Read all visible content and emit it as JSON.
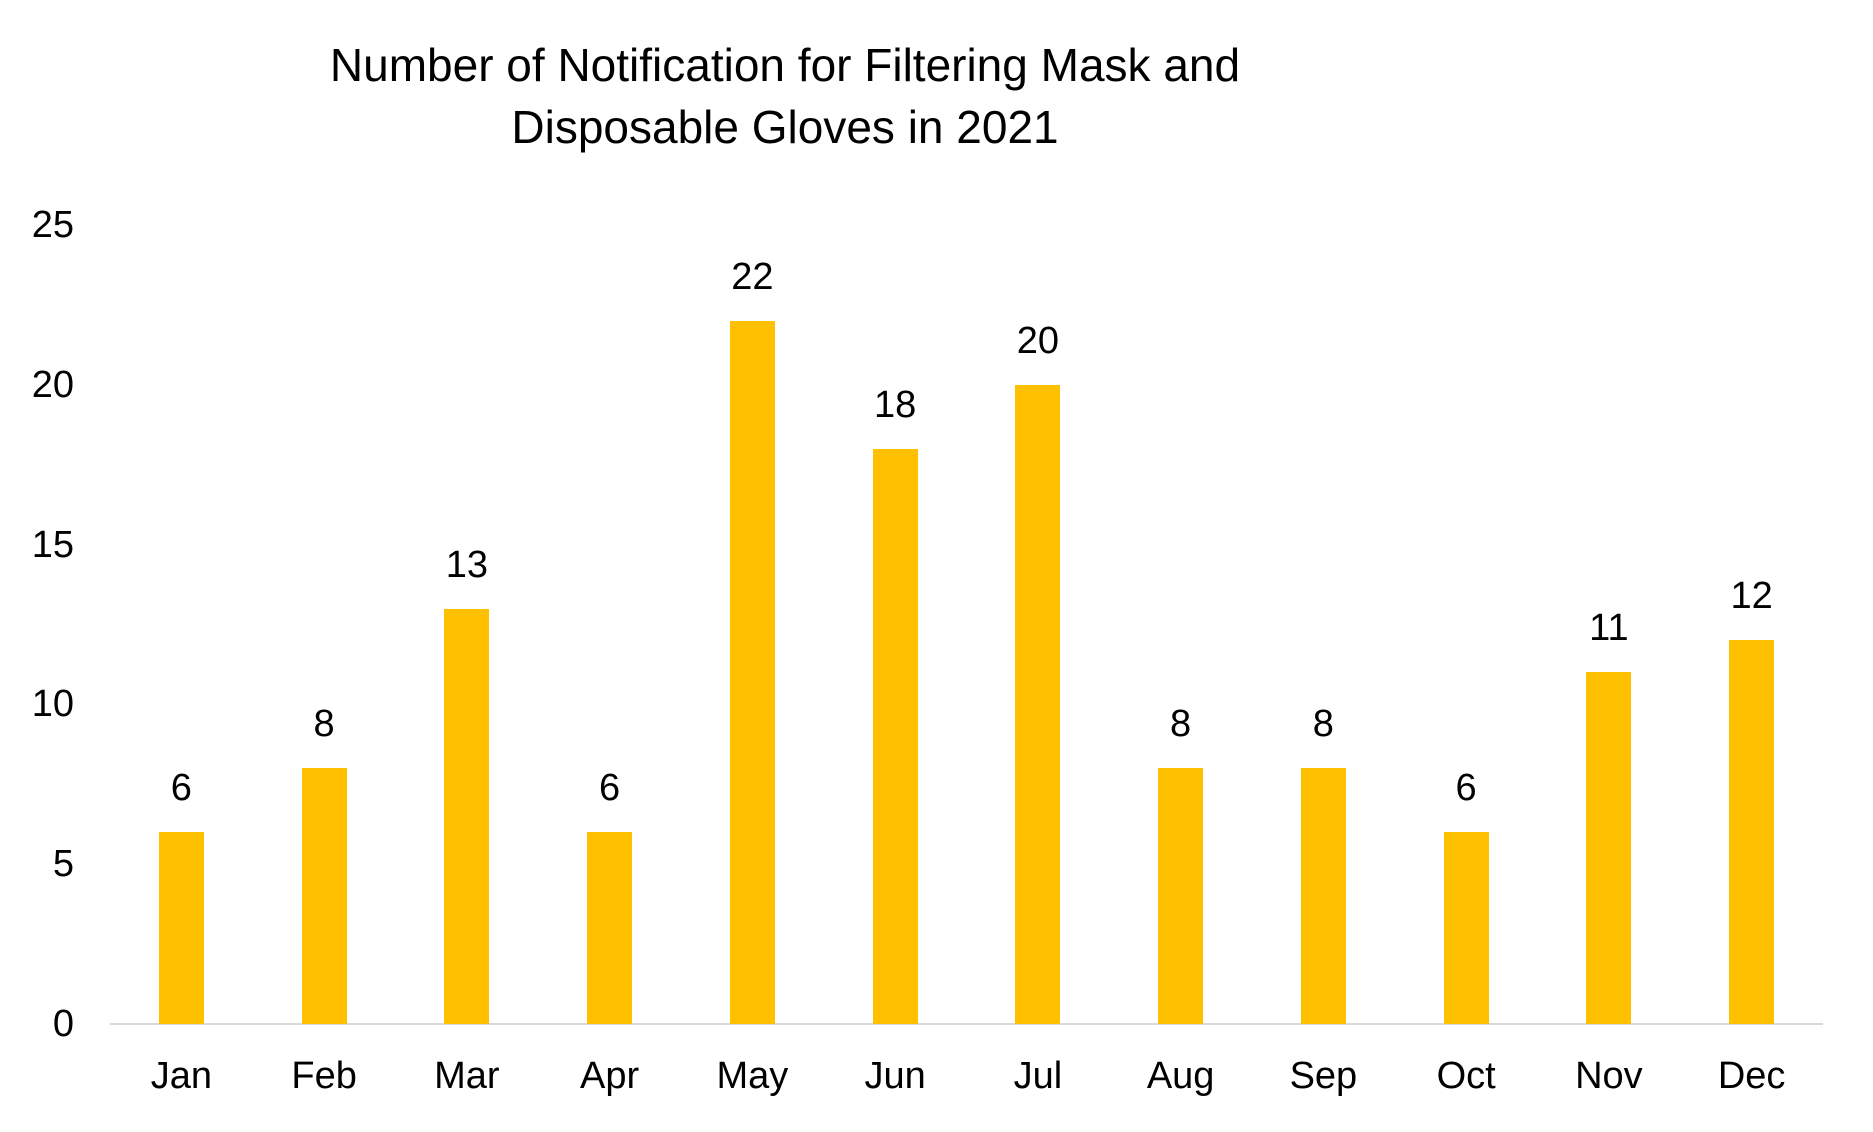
{
  "header": {
    "title_line1": "Number of Notification for Filtering Mask and",
    "title_line2": "Disposable Gloves in 2021"
  },
  "chart_data": {
    "type": "bar",
    "title": "Number of Notification for Filtering Mask and Disposable Gloves in 2021",
    "categories": [
      "Jan",
      "Feb",
      "Mar",
      "Apr",
      "May",
      "Jun",
      "Jul",
      "Aug",
      "Sep",
      "Oct",
      "Nov",
      "Dec"
    ],
    "values": [
      6,
      8,
      13,
      6,
      22,
      18,
      20,
      8,
      8,
      6,
      11,
      12
    ],
    "xlabel": "",
    "ylabel": "",
    "ylim": [
      0,
      25
    ],
    "yticks": [
      0,
      5,
      10,
      15,
      20,
      25
    ],
    "grid": false,
    "legend_position": "none",
    "data_labels": true,
    "bar_color": "#FFC000",
    "axis_line_color": "#D9D9D9",
    "text_color": "#000000",
    "background_color": "#FFFFFF"
  }
}
